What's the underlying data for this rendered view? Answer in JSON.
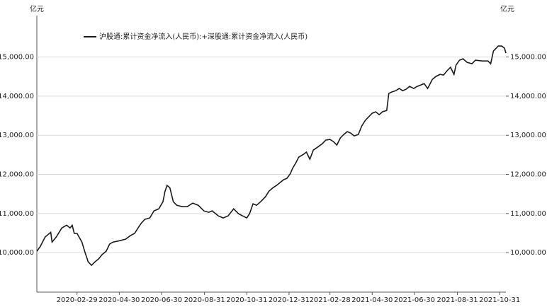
{
  "chart_data": {
    "type": "line",
    "y_unit": "亿元",
    "y2_unit": "亿元",
    "xlim": [
      "2020-01-02",
      "2021-11-09"
    ],
    "xticks": [
      "2020-02-29",
      "2020-04-30",
      "2020-06-30",
      "2020-08-31",
      "2020-10-31",
      "2020-12-31",
      "2021-02-28",
      "2021-04-30",
      "2021-06-30",
      "2021-08-31",
      "2021-10-31"
    ],
    "ylim": [
      8990,
      16060
    ],
    "yticks": [
      {
        "value": 10000,
        "label": "10,000.00"
      },
      {
        "value": 11000,
        "label": "11,000.00"
      },
      {
        "value": 12000,
        "label": "12,000.00"
      },
      {
        "value": 13000,
        "label": "13,000.00"
      },
      {
        "value": 14000,
        "label": "14,000.00"
      },
      {
        "value": 15000,
        "label": "15,000.00"
      }
    ],
    "y2lim": [
      8990,
      16060
    ],
    "y2ticks": [
      {
        "value": 10000,
        "label": "10,000.00"
      },
      {
        "value": 11000,
        "label": "11,000.00"
      },
      {
        "value": 12000,
        "label": "12,000.00"
      },
      {
        "value": 13000,
        "label": "13,000.00"
      },
      {
        "value": 14000,
        "label": "14,000.00"
      },
      {
        "value": 15000,
        "label": "15,000.00"
      }
    ],
    "grid": true,
    "legend": "top-left",
    "x": [
      "2020-01-02",
      "2020-01-07",
      "2020-01-14",
      "2020-01-22",
      "2020-01-24",
      "2020-01-30",
      "2020-02-07",
      "2020-02-14",
      "2020-02-19",
      "2020-02-22",
      "2020-02-25",
      "2020-02-29",
      "2020-03-07",
      "2020-03-11",
      "2020-03-16",
      "2020-03-21",
      "2020-03-26",
      "2020-03-31",
      "2020-04-05",
      "2020-04-11",
      "2020-04-16",
      "2020-04-21",
      "2020-05-01",
      "2020-05-09",
      "2020-05-16",
      "2020-05-22",
      "2020-05-27",
      "2020-06-01",
      "2020-06-06",
      "2020-06-13",
      "2020-06-19",
      "2020-06-26",
      "2020-07-02",
      "2020-07-05",
      "2020-07-08",
      "2020-07-12",
      "2020-07-17",
      "2020-07-22",
      "2020-07-30",
      "2020-08-06",
      "2020-08-14",
      "2020-08-22",
      "2020-08-30",
      "2020-09-06",
      "2020-09-11",
      "2020-09-20",
      "2020-09-27",
      "2020-10-04",
      "2020-10-12",
      "2020-10-19",
      "2020-10-25",
      "2020-10-31",
      "2020-11-04",
      "2020-11-09",
      "2020-11-14",
      "2020-11-20",
      "2020-11-27",
      "2020-12-02",
      "2020-12-08",
      "2020-12-13",
      "2020-12-18",
      "2020-12-23",
      "2020-12-28",
      "2021-01-02",
      "2021-01-05",
      "2021-01-10",
      "2021-01-14",
      "2021-01-21",
      "2021-01-25",
      "2021-01-30",
      "2021-02-04",
      "2021-02-10",
      "2021-02-17",
      "2021-02-22",
      "2021-02-28",
      "2021-03-05",
      "2021-03-10",
      "2021-03-15",
      "2021-03-20",
      "2021-03-25",
      "2021-03-30",
      "2021-04-04",
      "2021-04-10",
      "2021-04-15",
      "2021-04-20",
      "2021-04-25",
      "2021-04-30",
      "2021-05-05",
      "2021-05-10",
      "2021-05-15",
      "2021-05-21",
      "2021-05-24",
      "2021-05-28",
      "2021-06-03",
      "2021-06-08",
      "2021-06-13",
      "2021-06-18",
      "2021-06-23",
      "2021-06-29",
      "2021-07-04",
      "2021-07-09",
      "2021-07-14",
      "2021-07-19",
      "2021-07-26",
      "2021-07-31",
      "2021-08-06",
      "2021-08-11",
      "2021-08-16",
      "2021-08-21",
      "2021-08-26",
      "2021-08-29",
      "2021-09-03",
      "2021-09-08",
      "2021-09-14",
      "2021-09-21",
      "2021-09-26",
      "2021-10-06",
      "2021-10-14",
      "2021-10-18",
      "2021-10-22",
      "2021-10-29",
      "2021-11-03",
      "2021-11-07",
      "2021-11-09"
    ],
    "series": [
      {
        "name": "沪股通:累计资金净流入(人民币):+深股通:累计资金净流入(人民币)",
        "color": "#1a1a1a",
        "values": [
          10036,
          10160,
          10400,
          10520,
          10270,
          10400,
          10630,
          10700,
          10630,
          10700,
          10490,
          10490,
          10270,
          10036,
          9765,
          9675,
          9765,
          9837,
          9946,
          10036,
          10217,
          10270,
          10307,
          10343,
          10434,
          10490,
          10630,
          10760,
          10850,
          10886,
          11067,
          11120,
          11300,
          11570,
          11718,
          11660,
          11300,
          11210,
          11175,
          11175,
          11266,
          11210,
          11067,
          11030,
          11067,
          10940,
          10886,
          10940,
          11120,
          10995,
          10940,
          10886,
          10995,
          11248,
          11210,
          11300,
          11430,
          11570,
          11660,
          11718,
          11790,
          11862,
          11900,
          12025,
          12150,
          12300,
          12440,
          12515,
          12570,
          12387,
          12620,
          12694,
          12785,
          12875,
          12894,
          12840,
          12750,
          12930,
          13020,
          13092,
          13055,
          12984,
          13020,
          13237,
          13380,
          13472,
          13562,
          13600,
          13526,
          13600,
          13635,
          14069,
          14105,
          14140,
          14195,
          14140,
          14177,
          14250,
          14195,
          14250,
          14285,
          14322,
          14195,
          14430,
          14503,
          14557,
          14540,
          14648,
          14738,
          14557,
          14792,
          14919,
          14955,
          14864,
          14828,
          14919,
          14900,
          14900,
          14828,
          15153,
          15280,
          15280,
          15226,
          15100
        ]
      }
    ]
  }
}
